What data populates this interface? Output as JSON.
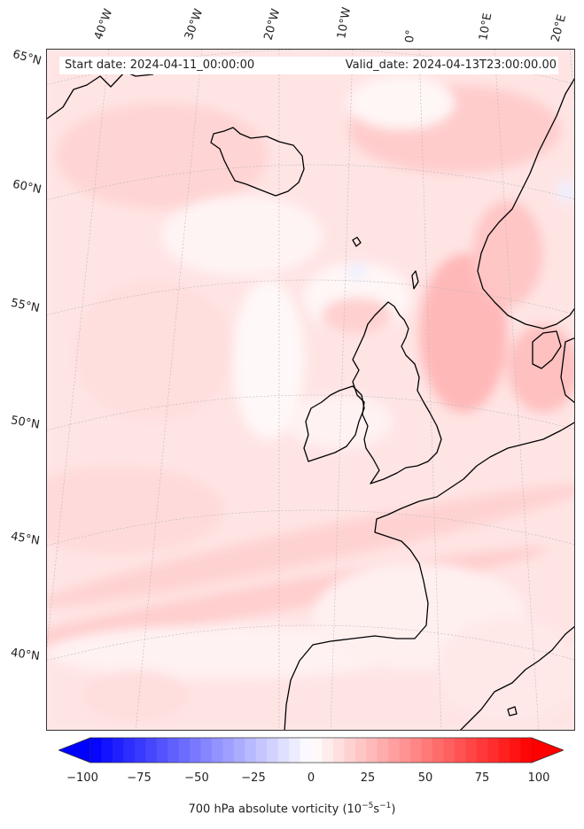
{
  "header": {
    "start_date": "Start date: 2024-04-11_00:00:00",
    "valid_date": "Valid_date: 2024-04-13T23:00:00.00"
  },
  "map": {
    "longitude_labels": [
      "40°W",
      "30°W",
      "20°W",
      "10°W",
      "0°",
      "10°E",
      "20°E"
    ],
    "latitude_labels": [
      "65°N",
      "60°N",
      "55°N",
      "50°N",
      "45°N",
      "40°N"
    ],
    "field": "700 hPa absolute vorticity",
    "colors": {
      "background_field": "#ffeaea",
      "coastline": "#000000",
      "gridline": "#bbbbbb"
    }
  },
  "colorbar": {
    "min": -100,
    "max": 100,
    "ticks": [
      "−100",
      "−75",
      "−50",
      "−25",
      "0",
      "25",
      "50",
      "75",
      "100"
    ],
    "label_main": "700 hPa absolute vorticity (10",
    "label_exp1": "−5",
    "label_mid": "s",
    "label_exp2": "−1",
    "label_end": ")",
    "colormap": "bwr",
    "extend": "both"
  }
}
